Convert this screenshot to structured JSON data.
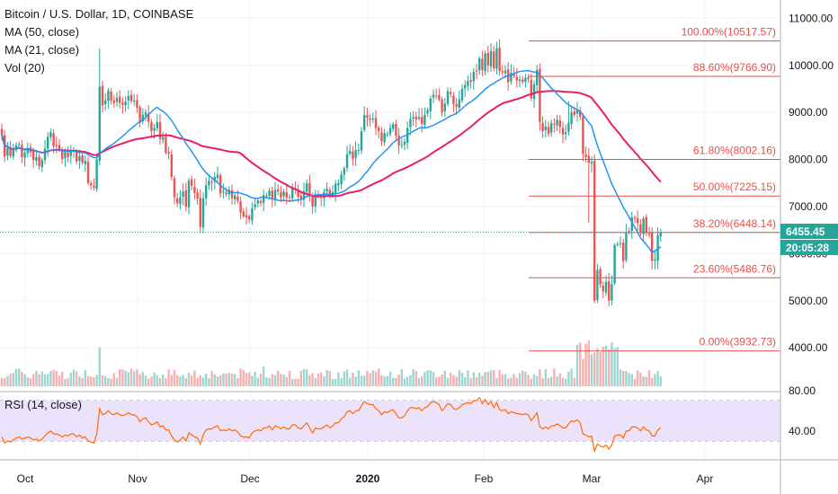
{
  "legend": {
    "symbol": "Bitcoin / U.S. Dollar, 1D, COINBASE",
    "ma50": "MA (50, close)",
    "ma21": "MA (21, close)",
    "vol": "Vol (20)",
    "rsi": "RSI (14, close)"
  },
  "price_tag": {
    "value": "6455.45",
    "countdown": "20:05:28"
  },
  "colors": {
    "up": "#26a69a",
    "down": "#ef5350",
    "ma50": "#e91e63",
    "ma21": "#2196f3",
    "fib": "#e5504a",
    "rsi": "#ff6d00",
    "rsi_band": "#ede2fb",
    "tag_bg": "#26a69a",
    "timer_bg": "#26a69a"
  },
  "chart_data": {
    "type": "candlestick",
    "price_axis": {
      "ticks": [
        4000,
        5000,
        6000,
        7000,
        8000,
        9000,
        10000,
        11000
      ],
      "tick_labels": [
        "4000.00",
        "5000.00",
        "6000.00",
        "7000.00",
        "8000.00",
        "9000.00",
        "10000.00",
        "11000.00"
      ],
      "range": [
        3500,
        11000
      ]
    },
    "rsi_axis": {
      "ticks": [
        40,
        80
      ],
      "tick_labels": [
        "40.00",
        "80.00"
      ],
      "band": [
        30,
        70
      ]
    },
    "time_axis": {
      "labels": [
        "Oct",
        "Nov",
        "Dec",
        "2020",
        "Feb",
        "Mar",
        "Apr"
      ],
      "bold": [
        "2020"
      ]
    },
    "first_date": "2019-09-25",
    "current_price": 6455.45,
    "closes": [
      8530,
      8060,
      8240,
      8080,
      8200,
      8300,
      8330,
      8050,
      8150,
      8240,
      8150,
      7990,
      8050,
      7860,
      7980,
      8230,
      8480,
      8580,
      8280,
      8300,
      8200,
      8010,
      8160,
      8050,
      8200,
      8200,
      7960,
      8070,
      7930,
      7970,
      7500,
      7450,
      7400,
      8000,
      9550,
      9150,
      9260,
      9470,
      9250,
      9200,
      9310,
      9200,
      9160,
      9230,
      9350,
      9240,
      9250,
      9100,
      8780,
      8950,
      9000,
      8800,
      8600,
      8670,
      8800,
      8440,
      8480,
      8150,
      8130,
      7630,
      7200,
      7070,
      7200,
      7320,
      7000,
      7550,
      7440,
      7290,
      7170,
      6570,
      7180,
      7450,
      7550,
      7510,
      7630,
      7680,
      7280,
      7330,
      7270,
      7360,
      7180,
      7240,
      7120,
      6870,
      6790,
      6770,
      6730,
      6960,
      7050,
      7130,
      7080,
      7240,
      7240,
      7340,
      7150,
      7350,
      7320,
      7200,
      7320,
      7190,
      7200,
      7390,
      7360,
      7210,
      7170,
      7330,
      7490,
      7210,
      7000,
      7260,
      7220,
      7190,
      7310,
      7380,
      7210,
      7310,
      7480,
      7500,
      7680,
      7810,
      8110,
      8180,
      8020,
      8200,
      8200,
      8600,
      8950,
      8890,
      8840,
      8870,
      8670,
      8600,
      8390,
      8560,
      8540,
      8670,
      8750,
      8500,
      8300,
      8310,
      8380,
      8670,
      8860,
      8900,
      8850,
      8900,
      8760,
      8950,
      9050,
      9300,
      9380,
      9350,
      9270,
      9000,
      9190,
      9450,
      9390,
      9180,
      9120,
      9280,
      9500,
      9580,
      9670,
      9650,
      9860,
      9880,
      10150,
      9900,
      10250,
      10000,
      10300,
      9940,
      10360,
      9880,
      9850,
      9890,
      9640,
      9840,
      9770,
      9680,
      9700,
      9650,
      9740,
      9710,
      9300,
      9600,
      9900,
      8800,
      8600,
      8700,
      8550,
      8770,
      8750,
      8850,
      8690,
      8530,
      8580,
      8780,
      9000,
      8950,
      9050,
      8910,
      8120,
      8050,
      7930,
      7950,
      5000,
      5650,
      5350,
      5200,
      5400,
      5000,
      5350,
      6180,
      6200,
      6220,
      5840,
      6450,
      6480,
      6770,
      6750,
      6650,
      6440,
      6750,
      6460,
      6420,
      5850,
      5880,
      6390,
      6455
    ],
    "rsi": [
      34,
      28,
      30,
      29,
      31,
      33,
      34,
      32,
      33,
      34,
      33,
      31,
      32,
      30,
      32,
      35,
      38,
      40,
      37,
      37,
      36,
      34,
      36,
      35,
      37,
      37,
      34,
      36,
      33,
      34,
      30,
      29,
      28,
      37,
      62,
      56,
      57,
      60,
      57,
      56,
      58,
      56,
      55,
      56,
      58,
      56,
      56,
      54,
      49,
      52,
      53,
      49,
      46,
      47,
      49,
      44,
      45,
      41,
      41,
      35,
      31,
      29,
      31,
      34,
      30,
      38,
      36,
      34,
      33,
      27,
      36,
      41,
      42,
      42,
      44,
      45,
      40,
      41,
      40,
      42,
      40,
      41,
      39,
      35,
      34,
      34,
      33,
      38,
      40,
      41,
      40,
      43,
      43,
      45,
      41,
      45,
      44,
      42,
      44,
      42,
      42,
      46,
      46,
      43,
      42,
      45,
      48,
      43,
      38,
      43,
      42,
      42,
      44,
      46,
      43,
      45,
      48,
      48,
      52,
      54,
      59,
      60,
      57,
      60,
      60,
      65,
      69,
      67,
      66,
      66,
      62,
      60,
      56,
      59,
      58,
      60,
      61,
      57,
      53,
      53,
      55,
      60,
      63,
      63,
      62,
      63,
      60,
      63,
      64,
      68,
      69,
      68,
      66,
      60,
      63,
      67,
      66,
      62,
      61,
      63,
      66,
      67,
      68,
      67,
      70,
      70,
      73,
      67,
      71,
      66,
      69,
      63,
      68,
      61,
      60,
      61,
      57,
      59,
      58,
      57,
      57,
      56,
      57,
      56,
      50,
      54,
      58,
      44,
      42,
      44,
      42,
      45,
      45,
      47,
      45,
      43,
      43,
      47,
      50,
      49,
      51,
      48,
      37,
      36,
      34,
      35,
      20,
      27,
      25,
      24,
      26,
      22,
      26,
      35,
      36,
      36,
      33,
      40,
      40,
      44,
      44,
      43,
      40,
      44,
      41,
      40,
      35,
      35,
      41,
      43
    ]
  },
  "fib": [
    {
      "label": "100.00%(10517.57)",
      "price": 10517.57
    },
    {
      "label": "88.60%(9766.90)",
      "price": 9766.9
    },
    {
      "label": "61.80%(8002.16)",
      "price": 8002.16
    },
    {
      "label": "50.00%(7225.15)",
      "price": 7225.15
    },
    {
      "label": "38.20%(6448.14)",
      "price": 6448.14
    },
    {
      "label": "23.60%(5486.76)",
      "price": 5486.76
    },
    {
      "label": "0.00%(3932.73)",
      "price": 3932.73
    }
  ]
}
